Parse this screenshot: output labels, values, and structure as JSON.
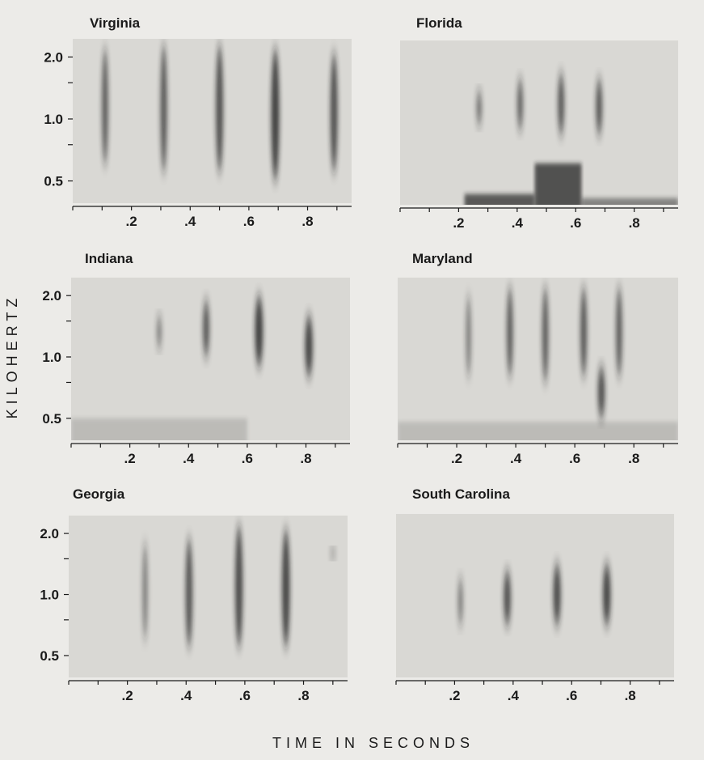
{
  "chart_data": [
    {
      "type": "spectrogram",
      "title": "Virginia",
      "xlabel": "TIME IN SECONDS",
      "ylabel": "KILOHERTZ",
      "xticks": [
        ".2",
        ".4",
        ".6",
        ".8"
      ],
      "xtick_values": [
        0.2,
        0.4,
        0.6,
        0.8
      ],
      "yticks": [
        "0.5",
        "1.0",
        "2.0"
      ],
      "ytick_values": [
        0.5,
        1.0,
        2.0
      ],
      "xlim": [
        0,
        0.95
      ],
      "y_scale": "log",
      "notes": [
        {
          "t": 0.11,
          "f_low": 0.6,
          "f_high": 2.2,
          "intensity": 0.55
        },
        {
          "t": 0.31,
          "f_low": 0.55,
          "f_high": 2.3,
          "intensity": 0.6
        },
        {
          "t": 0.5,
          "f_low": 0.55,
          "f_high": 2.3,
          "intensity": 0.7
        },
        {
          "t": 0.69,
          "f_low": 0.5,
          "f_high": 2.2,
          "intensity": 0.85
        },
        {
          "t": 0.89,
          "f_low": 0.55,
          "f_high": 2.1,
          "intensity": 0.7
        }
      ],
      "noise": []
    },
    {
      "type": "spectrogram",
      "title": "Florida",
      "xticks": [
        ".2",
        ".4",
        ".6",
        ".8"
      ],
      "xtick_values": [
        0.2,
        0.4,
        0.6,
        0.8
      ],
      "xlim": [
        0,
        0.95
      ],
      "y_scale": "log",
      "notes": [
        {
          "t": 0.27,
          "f_low": 0.95,
          "f_high": 1.4,
          "intensity": 0.4
        },
        {
          "t": 0.41,
          "f_low": 0.9,
          "f_high": 1.6,
          "intensity": 0.5
        },
        {
          "t": 0.55,
          "f_low": 0.85,
          "f_high": 1.7,
          "intensity": 0.6
        },
        {
          "t": 0.68,
          "f_low": 0.85,
          "f_high": 1.6,
          "intensity": 0.6
        }
      ],
      "noise": [
        {
          "t0": 0.0,
          "t1": 0.22,
          "f_high": 0.38,
          "intensity": 0.35
        },
        {
          "t0": 0.22,
          "t1": 0.46,
          "f_high": 0.44,
          "intensity": 0.9
        },
        {
          "t0": 0.46,
          "t1": 0.62,
          "f_high": 0.62,
          "intensity": 0.95
        },
        {
          "t0": 0.62,
          "t1": 0.95,
          "f_high": 0.42,
          "intensity": 0.6
        }
      ]
    },
    {
      "type": "spectrogram",
      "title": "Indiana",
      "xticks": [
        ".2",
        ".4",
        ".6",
        ".8"
      ],
      "xtick_values": [
        0.2,
        0.4,
        0.6,
        0.8
      ],
      "yticks": [
        "0.5",
        "1.0",
        "2.0"
      ],
      "ytick_values": [
        0.5,
        1.0,
        2.0
      ],
      "xlim": [
        0,
        0.95
      ],
      "y_scale": "log",
      "notes": [
        {
          "t": 0.3,
          "f_low": 1.1,
          "f_high": 1.6,
          "intensity": 0.3
        },
        {
          "t": 0.46,
          "f_low": 1.0,
          "f_high": 1.9,
          "intensity": 0.6
        },
        {
          "t": 0.64,
          "f_low": 0.9,
          "f_high": 2.0,
          "intensity": 0.85
        },
        {
          "t": 0.81,
          "f_low": 0.8,
          "f_high": 1.6,
          "intensity": 0.8
        }
      ],
      "noise": [
        {
          "t0": 0.0,
          "t1": 0.6,
          "f_high": 0.5,
          "intensity": 0.2
        }
      ]
    },
    {
      "type": "spectrogram",
      "title": "Maryland",
      "xticks": [
        ".2",
        ".4",
        ".6",
        ".8"
      ],
      "xtick_values": [
        0.2,
        0.4,
        0.6,
        0.8
      ],
      "xlim": [
        0,
        0.95
      ],
      "y_scale": "log",
      "notes": [
        {
          "t": 0.24,
          "f_low": 0.8,
          "f_high": 2.0,
          "intensity": 0.3
        },
        {
          "t": 0.38,
          "f_low": 0.8,
          "f_high": 2.2,
          "intensity": 0.55
        },
        {
          "t": 0.5,
          "f_low": 0.75,
          "f_high": 2.2,
          "intensity": 0.55
        },
        {
          "t": 0.63,
          "f_low": 0.8,
          "f_high": 2.2,
          "intensity": 0.6
        },
        {
          "t": 0.69,
          "f_low": 0.5,
          "f_high": 0.9,
          "intensity": 0.7
        },
        {
          "t": 0.75,
          "f_low": 0.8,
          "f_high": 2.2,
          "intensity": 0.55
        }
      ],
      "noise": [
        {
          "t0": 0.0,
          "t1": 0.95,
          "f_high": 0.48,
          "intensity": 0.2
        }
      ]
    },
    {
      "type": "spectrogram",
      "title": "Georgia",
      "xticks": [
        ".2",
        ".4",
        ".6",
        ".8"
      ],
      "xtick_values": [
        0.2,
        0.4,
        0.6,
        0.8
      ],
      "yticks": [
        "0.5",
        "1.0",
        "2.0"
      ],
      "ytick_values": [
        0.5,
        1.0,
        2.0
      ],
      "xlim": [
        0,
        0.95
      ],
      "y_scale": "log",
      "notes": [
        {
          "t": 0.26,
          "f_low": 0.6,
          "f_high": 1.8,
          "intensity": 0.3
        },
        {
          "t": 0.41,
          "f_low": 0.55,
          "f_high": 1.9,
          "intensity": 0.65
        },
        {
          "t": 0.58,
          "f_low": 0.55,
          "f_high": 2.2,
          "intensity": 0.75
        },
        {
          "t": 0.74,
          "f_low": 0.55,
          "f_high": 2.1,
          "intensity": 0.8
        },
        {
          "t": 0.9,
          "f_low": 1.5,
          "f_high": 1.7,
          "intensity": 0.25
        }
      ],
      "noise": []
    },
    {
      "type": "spectrogram",
      "title": "South Carolina",
      "xticks": [
        ".2",
        ".4",
        ".6",
        ".8"
      ],
      "xtick_values": [
        0.2,
        0.4,
        0.6,
        0.8
      ],
      "xlim": [
        0,
        0.95
      ],
      "y_scale": "log",
      "notes": [
        {
          "t": 0.22,
          "f_low": 0.7,
          "f_high": 1.2,
          "intensity": 0.3
        },
        {
          "t": 0.38,
          "f_low": 0.7,
          "f_high": 1.3,
          "intensity": 0.7
        },
        {
          "t": 0.55,
          "f_low": 0.7,
          "f_high": 1.4,
          "intensity": 0.75
        },
        {
          "t": 0.72,
          "f_low": 0.7,
          "f_high": 1.4,
          "intensity": 0.8
        }
      ],
      "noise": []
    }
  ],
  "shared": {
    "ylabel": "KILOHERTZ",
    "xlabel": "TIME IN SECONDS"
  },
  "colors": {
    "background": "#ecebe8",
    "panel": "#d9d8d4",
    "ink": "#1a1a1a"
  }
}
